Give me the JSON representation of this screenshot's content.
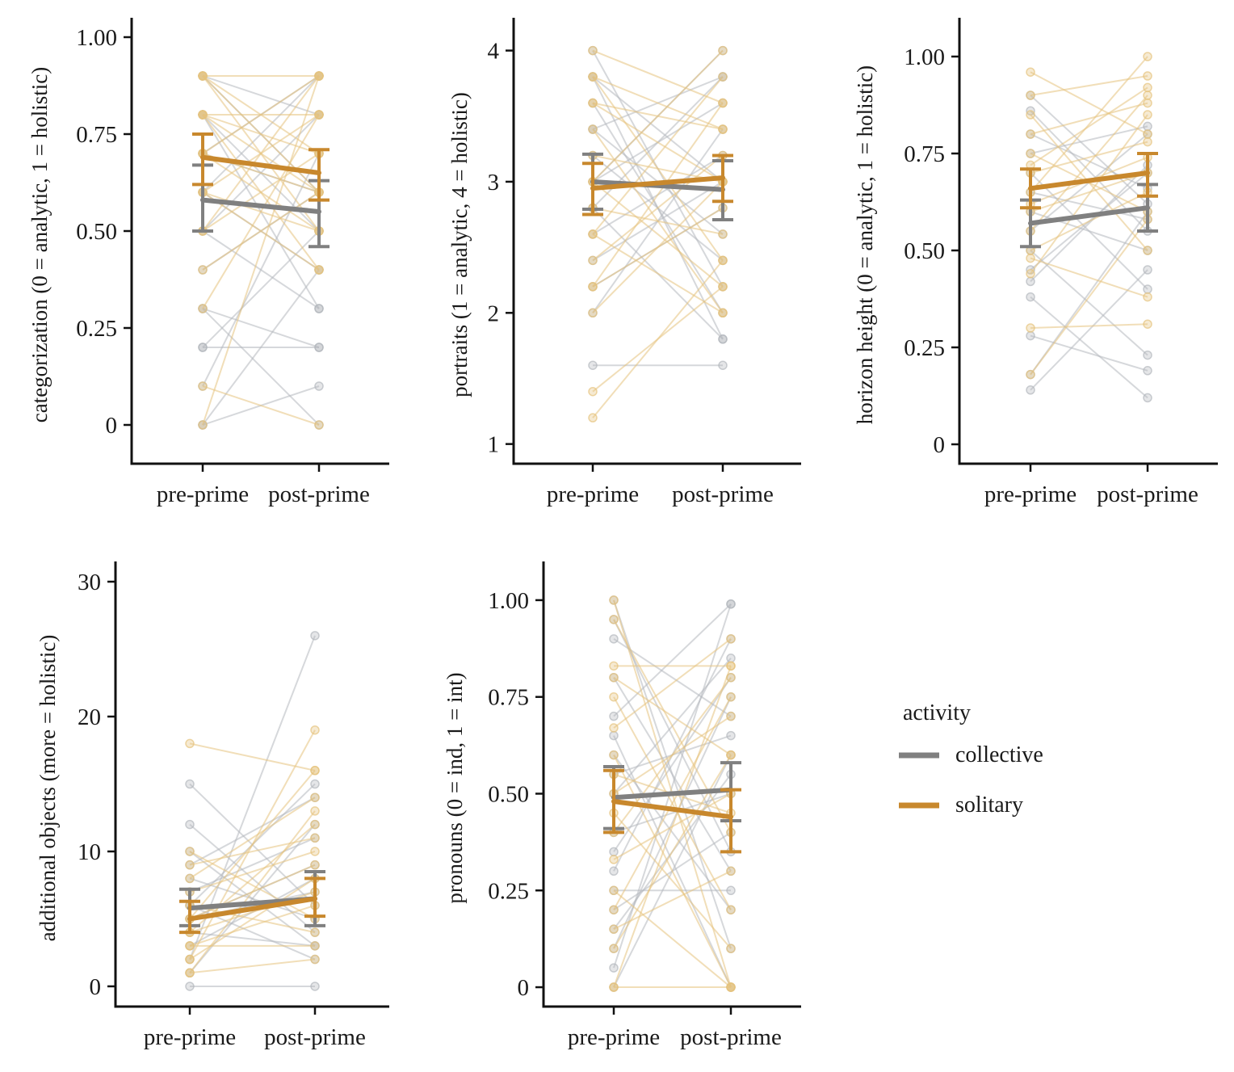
{
  "colors": {
    "collective": "#808080",
    "solitary": "#C8882D",
    "collective_faint": "#B4B8BE",
    "solitary_faint": "#E5C37E",
    "axis": "#111111"
  },
  "legend": {
    "title": "activity",
    "items": [
      {
        "label": "collective",
        "color": "#808080"
      },
      {
        "label": "solitary",
        "color": "#C8882D"
      }
    ]
  },
  "chart_data": [
    {
      "type": "line",
      "ylabel": "categorization (0 = analytic, 1 = holistic)",
      "categories": [
        "pre-prime",
        "post-prime"
      ],
      "ylim": [
        -0.1,
        1.05
      ],
      "yticks": [
        0,
        0.25,
        0.5,
        0.75,
        1.0
      ],
      "yticklabels": [
        "0",
        "0.25",
        "0.50",
        "0.75",
        "1.00"
      ],
      "series": [
        {
          "name": "collective",
          "values": [
            0.58,
            0.55
          ],
          "ci_low": [
            0.5,
            0.46
          ],
          "ci_high": [
            0.67,
            0.63
          ]
        },
        {
          "name": "solitary",
          "values": [
            0.69,
            0.65
          ],
          "ci_low": [
            0.62,
            0.58
          ],
          "ci_high": [
            0.75,
            0.71
          ]
        }
      ],
      "individual_pairs": {
        "collective": [
          [
            0.9,
            0.6
          ],
          [
            0.8,
            0.3
          ],
          [
            0.7,
            0.9
          ],
          [
            0.6,
            0.4
          ],
          [
            0.5,
            0.8
          ],
          [
            0.4,
            0.6
          ],
          [
            0.3,
            0.2
          ],
          [
            0.2,
            0.5
          ],
          [
            0.1,
            0.7
          ],
          [
            0.0,
            0.4
          ],
          [
            0.2,
            0.2
          ],
          [
            0.3,
            0.0
          ],
          [
            0.6,
            0.9
          ],
          [
            0.8,
            0.5
          ],
          [
            0.7,
            0.6
          ],
          [
            0.0,
            0.1
          ],
          [
            0.9,
            0.8
          ],
          [
            0.5,
            0.3
          ]
        ],
        "solitary": [
          [
            0.9,
            0.9
          ],
          [
            0.9,
            0.5
          ],
          [
            0.8,
            0.8
          ],
          [
            0.8,
            0.4
          ],
          [
            0.7,
            0.9
          ],
          [
            0.7,
            0.6
          ],
          [
            0.6,
            0.8
          ],
          [
            0.6,
            0.5
          ],
          [
            0.5,
            0.7
          ],
          [
            0.5,
            0.9
          ],
          [
            0.4,
            0.6
          ],
          [
            0.1,
            0.0
          ],
          [
            0.9,
            0.6
          ],
          [
            0.8,
            0.7
          ],
          [
            0.3,
            0.8
          ],
          [
            0.0,
            0.9
          ],
          [
            0.7,
            0.5
          ],
          [
            0.6,
            0.4
          ],
          [
            0.9,
            0.7
          ],
          [
            0.8,
            0.6
          ]
        ]
      }
    },
    {
      "type": "line",
      "ylabel": "portraits (1 = analytic, 4 = holistic)",
      "categories": [
        "pre-prime",
        "post-prime"
      ],
      "ylim": [
        0.85,
        4.25
      ],
      "yticks": [
        1,
        2,
        3,
        4
      ],
      "yticklabels": [
        "1",
        "2",
        "3",
        "4"
      ],
      "series": [
        {
          "name": "collective",
          "values": [
            3.0,
            2.94
          ],
          "ci_low": [
            2.79,
            2.71
          ],
          "ci_high": [
            3.21,
            3.16
          ]
        },
        {
          "name": "solitary",
          "values": [
            2.95,
            3.03
          ],
          "ci_low": [
            2.75,
            2.85
          ],
          "ci_high": [
            3.14,
            3.2
          ]
        }
      ],
      "individual_pairs": {
        "collective": [
          [
            4.0,
            2.2
          ],
          [
            3.8,
            3.0
          ],
          [
            3.6,
            2.0
          ],
          [
            3.4,
            3.8
          ],
          [
            3.2,
            2.4
          ],
          [
            3.0,
            3.6
          ],
          [
            2.8,
            1.8
          ],
          [
            2.6,
            3.2
          ],
          [
            2.4,
            3.0
          ],
          [
            2.2,
            2.8
          ],
          [
            1.6,
            1.6
          ],
          [
            3.0,
            4.0
          ],
          [
            3.8,
            1.8
          ],
          [
            2.0,
            3.4
          ],
          [
            3.4,
            2.6
          ],
          [
            2.8,
            3.8
          ]
        ],
        "solitary": [
          [
            4.0,
            3.6
          ],
          [
            3.8,
            2.4
          ],
          [
            3.6,
            3.4
          ],
          [
            3.4,
            2.0
          ],
          [
            3.2,
            3.0
          ],
          [
            3.0,
            4.0
          ],
          [
            2.8,
            2.6
          ],
          [
            2.6,
            3.8
          ],
          [
            2.4,
            3.2
          ],
          [
            2.2,
            2.8
          ],
          [
            2.0,
            3.0
          ],
          [
            1.4,
            2.2
          ],
          [
            1.2,
            2.4
          ],
          [
            3.6,
            3.0
          ],
          [
            2.2,
            3.6
          ],
          [
            3.0,
            2.2
          ],
          [
            3.8,
            3.4
          ],
          [
            2.6,
            2.0
          ]
        ]
      }
    },
    {
      "type": "line",
      "ylabel": "horizon height (0 = analytic, 1 = holistic)",
      "categories": [
        "pre-prime",
        "post-prime"
      ],
      "ylim": [
        -0.05,
        1.1
      ],
      "yticks": [
        0,
        0.25,
        0.5,
        0.75,
        1.0
      ],
      "yticklabels": [
        "0",
        "0.25",
        "0.50",
        "0.75",
        "1.00"
      ],
      "series": [
        {
          "name": "collective",
          "values": [
            0.57,
            0.61
          ],
          "ci_low": [
            0.51,
            0.55
          ],
          "ci_high": [
            0.63,
            0.67
          ]
        },
        {
          "name": "solitary",
          "values": [
            0.66,
            0.7
          ],
          "ci_low": [
            0.61,
            0.64
          ],
          "ci_high": [
            0.71,
            0.75
          ]
        }
      ],
      "individual_pairs": {
        "collective": [
          [
            0.14,
            0.45
          ],
          [
            0.18,
            0.6
          ],
          [
            0.28,
            0.19
          ],
          [
            0.38,
            0.12
          ],
          [
            0.45,
            0.7
          ],
          [
            0.5,
            0.23
          ],
          [
            0.55,
            0.8
          ],
          [
            0.6,
            0.5
          ],
          [
            0.65,
            0.58
          ],
          [
            0.7,
            0.4
          ],
          [
            0.75,
            0.82
          ],
          [
            0.8,
            0.66
          ],
          [
            0.86,
            0.55
          ],
          [
            0.9,
            0.62
          ],
          [
            0.42,
            0.72
          ]
        ],
        "solitary": [
          [
            0.18,
            0.58
          ],
          [
            0.3,
            0.31
          ],
          [
            0.44,
            0.85
          ],
          [
            0.5,
            0.65
          ],
          [
            0.55,
            0.9
          ],
          [
            0.6,
            0.7
          ],
          [
            0.65,
            1.0
          ],
          [
            0.7,
            0.78
          ],
          [
            0.75,
            0.6
          ],
          [
            0.8,
            0.88
          ],
          [
            0.85,
            0.5
          ],
          [
            0.9,
            0.95
          ],
          [
            0.96,
            0.8
          ],
          [
            0.62,
            0.74
          ],
          [
            0.48,
            0.38
          ],
          [
            0.72,
            0.92
          ]
        ]
      }
    },
    {
      "type": "line",
      "ylabel": "additional objects (more = holistic)",
      "categories": [
        "pre-prime",
        "post-prime"
      ],
      "ylim": [
        -1.5,
        31.5
      ],
      "yticks": [
        0,
        10,
        20,
        30
      ],
      "yticklabels": [
        "0",
        "10",
        "20",
        "30"
      ],
      "series": [
        {
          "name": "collective",
          "values": [
            5.8,
            6.5
          ],
          "ci_low": [
            4.5,
            4.5
          ],
          "ci_high": [
            7.2,
            8.5
          ]
        },
        {
          "name": "solitary",
          "values": [
            5.0,
            6.5
          ],
          "ci_low": [
            4.0,
            5.2
          ],
          "ci_high": [
            6.3,
            8.0
          ]
        }
      ],
      "individual_pairs": {
        "collective": [
          [
            0,
            0
          ],
          [
            2,
            26
          ],
          [
            4,
            3
          ],
          [
            5,
            9
          ],
          [
            6,
            2
          ],
          [
            7,
            11
          ],
          [
            8,
            5
          ],
          [
            9,
            14
          ],
          [
            12,
            4
          ],
          [
            15,
            6
          ],
          [
            3,
            8
          ],
          [
            1,
            12
          ],
          [
            10,
            3
          ],
          [
            6,
            15
          ],
          [
            5,
            7
          ]
        ],
        "solitary": [
          [
            1,
            2
          ],
          [
            2,
            19
          ],
          [
            3,
            6
          ],
          [
            4,
            12
          ],
          [
            5,
            16
          ],
          [
            6,
            4
          ],
          [
            7,
            10
          ],
          [
            8,
            14
          ],
          [
            10,
            5
          ],
          [
            18,
            16
          ],
          [
            2,
            8
          ],
          [
            1,
            13
          ],
          [
            3,
            3
          ],
          [
            9,
            11
          ],
          [
            4,
            7
          ],
          [
            5,
            9
          ]
        ]
      }
    },
    {
      "type": "line",
      "ylabel": "pronouns (0 = ind, 1 = int)",
      "categories": [
        "pre-prime",
        "post-prime"
      ],
      "ylim": [
        -0.05,
        1.1
      ],
      "yticks": [
        0,
        0.25,
        0.5,
        0.75,
        1.0
      ],
      "yticklabels": [
        "0",
        "0.25",
        "0.50",
        "0.75",
        "1.00"
      ],
      "series": [
        {
          "name": "collective",
          "values": [
            0.49,
            0.51
          ],
          "ci_low": [
            0.41,
            0.43
          ],
          "ci_high": [
            0.57,
            0.58
          ]
        },
        {
          "name": "solitary",
          "values": [
            0.48,
            0.44
          ],
          "ci_low": [
            0.4,
            0.35
          ],
          "ci_high": [
            0.56,
            0.51
          ]
        }
      ],
      "individual_pairs": {
        "collective": [
          [
            1.0,
            0.1
          ],
          [
            0.9,
            0.7
          ],
          [
            0.8,
            0.3
          ],
          [
            0.7,
            0.99
          ],
          [
            0.6,
            0.2
          ],
          [
            0.5,
            0.85
          ],
          [
            0.4,
            0.5
          ],
          [
            0.3,
            0.9
          ],
          [
            0.2,
            0.4
          ],
          [
            0.1,
            0.75
          ],
          [
            0.0,
            0.6
          ],
          [
            0.05,
            0.99
          ],
          [
            0.95,
            0.35
          ],
          [
            0.65,
            0.0
          ],
          [
            0.35,
            0.8
          ],
          [
            0.25,
            0.25
          ],
          [
            0.55,
            0.65
          ],
          [
            0.15,
            0.55
          ]
        ],
        "solitary": [
          [
            1.0,
            0.0
          ],
          [
            0.95,
            0.4
          ],
          [
            0.83,
            0.83
          ],
          [
            0.75,
            0.2
          ],
          [
            0.67,
            0.9
          ],
          [
            0.6,
            0.0
          ],
          [
            0.5,
            0.7
          ],
          [
            0.45,
            0.1
          ],
          [
            0.4,
            0.8
          ],
          [
            0.33,
            0.5
          ],
          [
            0.25,
            0.0
          ],
          [
            0.2,
            0.75
          ],
          [
            0.1,
            0.6
          ],
          [
            0.0,
            0.0
          ],
          [
            0.0,
            0.83
          ],
          [
            0.15,
            0.3
          ],
          [
            0.55,
            0.45
          ],
          [
            0.8,
            0.6
          ]
        ]
      }
    }
  ]
}
